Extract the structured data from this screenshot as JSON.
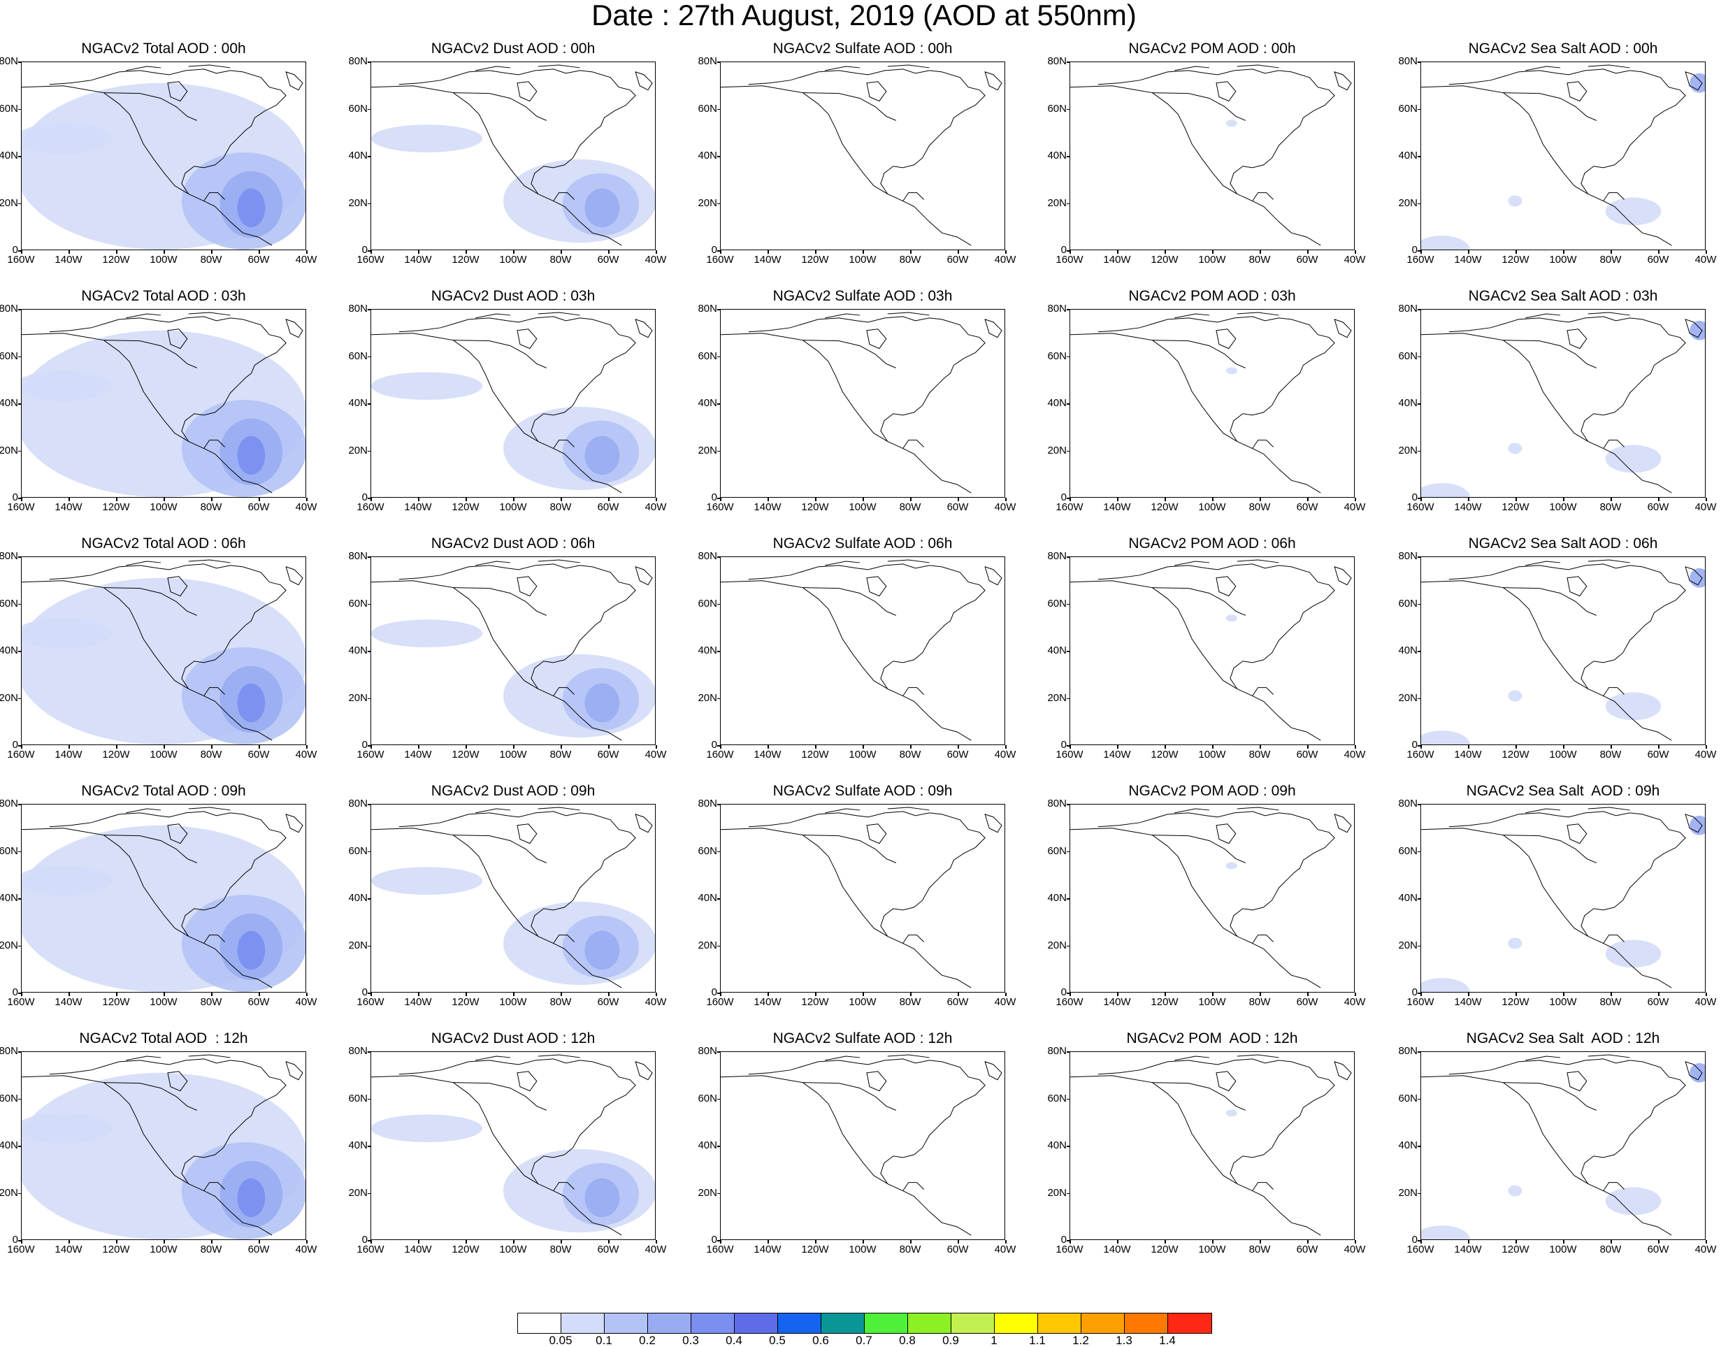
{
  "title": "Date : 27th August, 2019 (AOD at 550nm)",
  "lat_labels": [
    "80N",
    "60N",
    "40N",
    "20N",
    "0"
  ],
  "lon_labels": [
    "160W",
    "140W",
    "120W",
    "100W",
    "80W",
    "60W",
    "40W"
  ],
  "rows": [
    [
      "NGACv2 Total AOD : 00h",
      "NGACv2 Dust AOD : 00h",
      "NGACv2 Sulfate AOD : 00h",
      "NGACv2 POM AOD : 00h",
      "NGACv2 Sea Salt AOD : 00h"
    ],
    [
      "NGACv2 Total AOD : 03h",
      "NGACv2 Dust AOD : 03h",
      "NGACv2 Sulfate AOD : 03h",
      "NGACv2 POM AOD : 03h",
      "NGACv2 Sea Salt AOD : 03h"
    ],
    [
      "NGACv2 Total AOD : 06h",
      "NGACv2 Dust AOD : 06h",
      "NGACv2 Sulfate AOD : 06h",
      "NGACv2 POM AOD : 06h",
      "NGACv2 Sea Salt AOD : 06h"
    ],
    [
      "NGACv2 Total AOD : 09h",
      "NGACv2 Dust AOD : 09h",
      "NGACv2 Sulfate AOD : 09h",
      "NGACv2 POM AOD : 09h",
      "NGACv2 Sea Salt  AOD : 09h"
    ],
    [
      "NGACv2 Total AOD  : 12h",
      "NGACv2 Dust AOD : 12h",
      "NGACv2 Sulfate AOD : 12h",
      "NGACv2 POM  AOD : 12h",
      "NGACv2 Sea Salt  AOD : 12h"
    ]
  ],
  "colorbar": {
    "colors": [
      "#ffffff",
      "#d3dcf8",
      "#b4c3f5",
      "#98acf2",
      "#7a8ff0",
      "#5f6ce8",
      "#1464f0",
      "#0a9696",
      "#4ef03a",
      "#8cf022",
      "#c3f050",
      "#ffff00",
      "#ffc800",
      "#ffa000",
      "#ff7800",
      "#ff2814"
    ],
    "labels": [
      "0.05",
      "0.1",
      "0.2",
      "0.3",
      "0.4",
      "0.5",
      "0.6",
      "0.7",
      "0.8",
      "0.9",
      "1",
      "1.1",
      "1.2",
      "1.3",
      "1.4"
    ]
  }
}
